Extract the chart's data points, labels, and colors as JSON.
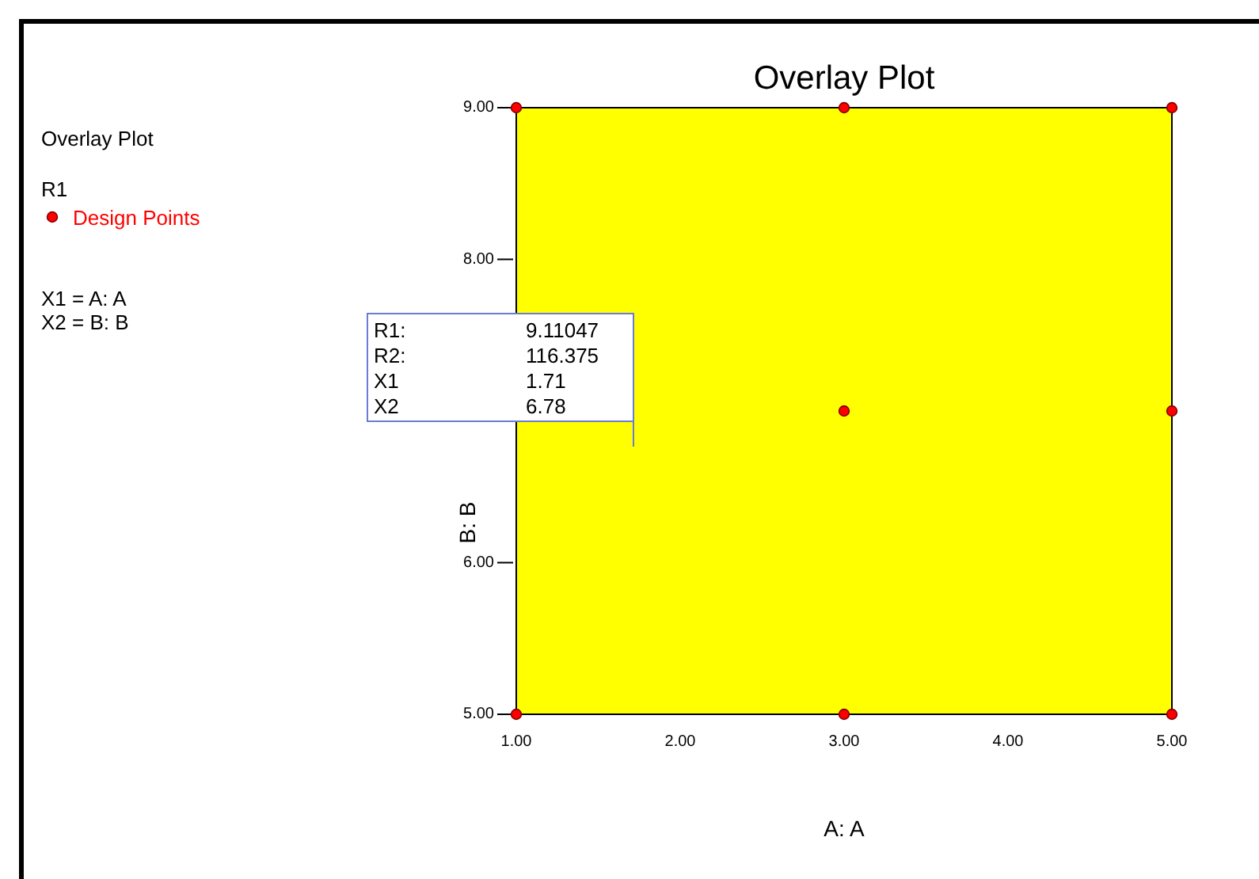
{
  "chart_data": {
    "type": "scatter",
    "title": "Overlay Plot",
    "xlabel": "A: A",
    "ylabel": "B: B",
    "legend_title": "R1",
    "legend": "left",
    "annotations": [
      "Overlay Plot",
      "X1 = A: A",
      "X2 = B: B",
      "R1: 9.11047",
      "R2: 116.375",
      "X1 1.71",
      "X2 6.78"
    ],
    "series": [
      {
        "name": "Design Points",
        "color": "#ff0000",
        "x": [
          1,
          3,
          5,
          3,
          5,
          1,
          3,
          5
        ],
        "values": [
          9,
          9,
          9,
          7,
          7,
          5,
          5,
          5
        ]
      }
    ],
    "marker": "circle",
    "bands": [
      {
        "axis": "x",
        "from": 1,
        "to": 5,
        "color": "#ffff00"
      }
    ],
    "xlim": [
      1,
      5
    ],
    "xticks": [
      {
        "value": 1,
        "label": "1.00"
      },
      {
        "value": 2,
        "label": "2.00"
      },
      {
        "value": 3,
        "label": "3.00"
      },
      {
        "value": 4,
        "label": "4.00"
      },
      {
        "value": 5,
        "label": "5.00"
      }
    ],
    "ylim": [
      5,
      9
    ],
    "yticks": [
      {
        "value": 5,
        "label": "5.00"
      },
      {
        "value": 6,
        "label": "6.00"
      },
      {
        "value": 7,
        "label": null
      },
      {
        "value": 8,
        "label": "8.00"
      },
      {
        "value": 9,
        "label": "9.00"
      }
    ]
  }
}
